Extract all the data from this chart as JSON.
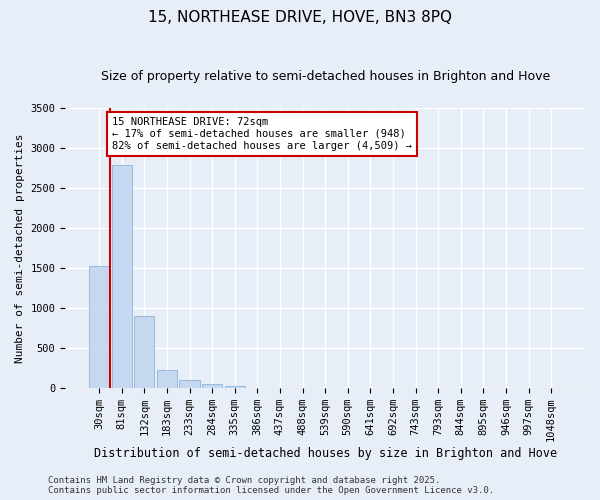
{
  "title": "15, NORTHEASE DRIVE, HOVE, BN3 8PQ",
  "subtitle": "Size of property relative to semi-detached houses in Brighton and Hove",
  "xlabel": "Distribution of semi-detached houses by size in Brighton and Hove",
  "ylabel": "Number of semi-detached properties",
  "bin_labels": [
    "30sqm",
    "81sqm",
    "132sqm",
    "183sqm",
    "233sqm",
    "284sqm",
    "335sqm",
    "386sqm",
    "437sqm",
    "488sqm",
    "539sqm",
    "590sqm",
    "641sqm",
    "692sqm",
    "743sqm",
    "793sqm",
    "844sqm",
    "895sqm",
    "946sqm",
    "997sqm",
    "1048sqm"
  ],
  "bar_values": [
    1520,
    2780,
    900,
    220,
    100,
    50,
    30,
    5,
    2,
    1,
    0,
    0,
    0,
    0,
    0,
    0,
    0,
    0,
    0,
    0,
    0
  ],
  "bar_color": "#c5d8f0",
  "bar_edge_color": "#8ab4d8",
  "ylim": [
    0,
    3500
  ],
  "yticks": [
    0,
    500,
    1000,
    1500,
    2000,
    2500,
    3000,
    3500
  ],
  "red_line_x": 0.5,
  "red_line_color": "#cc0000",
  "annotation_text": "15 NORTHEASE DRIVE: 72sqm\n← 17% of semi-detached houses are smaller (948)\n82% of semi-detached houses are larger (4,509) →",
  "annotation_box_color": "#ffffff",
  "annotation_box_edge": "#cc0000",
  "footer_line1": "Contains HM Land Registry data © Crown copyright and database right 2025.",
  "footer_line2": "Contains public sector information licensed under the Open Government Licence v3.0.",
  "background_color": "#e8eef8",
  "grid_color": "#ffffff",
  "title_fontsize": 11,
  "subtitle_fontsize": 9,
  "tick_fontsize": 7.5,
  "ylabel_fontsize": 8,
  "xlabel_fontsize": 8.5,
  "footer_fontsize": 6.5
}
